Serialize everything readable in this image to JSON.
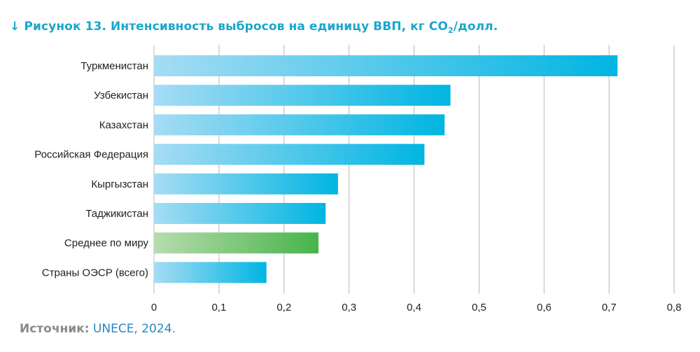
{
  "figure": {
    "arrow": "↓",
    "title_main": "Рисунок 13. Интенсивность выбросов на единицу ВВП, кг CO",
    "title_sub": "2",
    "title_tail": "/долл."
  },
  "source": {
    "label": "Источник:",
    "value": "UNECE, 2024."
  },
  "colors": {
    "title": "#1aa7cc",
    "bar_light": "#a6dcf4",
    "bar_dark": "#00b5e2",
    "highlight_light": "#b6dcae",
    "highlight_dark": "#47b44a",
    "grid": "#b8b8b8"
  },
  "chart_data": {
    "type": "bar",
    "orientation": "horizontal",
    "categories": [
      "Туркменистан",
      "Узбекистан",
      "Казахстан",
      "Российская Федерация",
      "Кыргызстан",
      "Таджикистан",
      "Среднее по миру",
      "Страны ОЭСР (всего)"
    ],
    "values": [
      0.713,
      0.456,
      0.447,
      0.416,
      0.283,
      0.264,
      0.253,
      0.173
    ],
    "highlight": [
      "Среднее по миру"
    ],
    "xlim": [
      0,
      0.8
    ],
    "xticks": [
      0,
      0.1,
      0.2,
      0.3,
      0.4,
      0.5,
      0.6,
      0.7,
      0.8
    ],
    "xtick_labels": [
      "0",
      "0,1",
      "0,2",
      "0,3",
      "0,4",
      "0,5",
      "0,6",
      "0,7",
      "0,8"
    ],
    "grid": "vertical"
  }
}
